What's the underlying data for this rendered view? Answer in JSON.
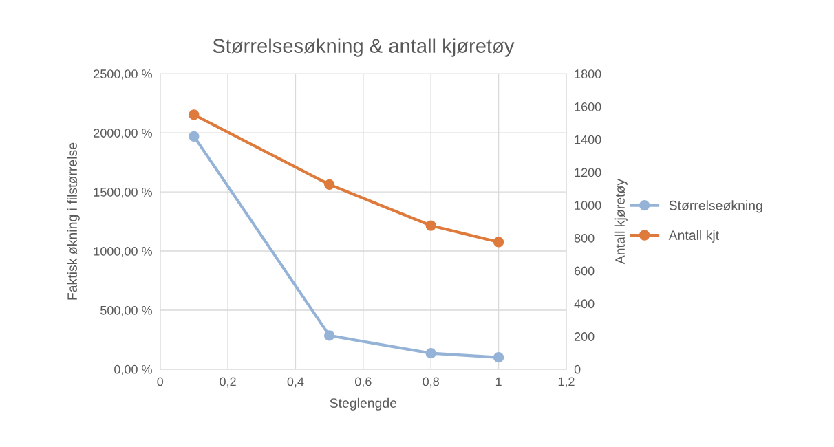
{
  "chart_data": {
    "type": "line",
    "title": "Størrelsesøkning & antall kjøretøy",
    "xlabel": "Steglengde",
    "ylabel": "Faktisk økning i filstørrelse",
    "y2label": "Antall kjøretøy",
    "x": [
      0.1,
      0.5,
      0.8,
      1
    ],
    "series": [
      {
        "name": "Størrelseøkning",
        "color": "#95b3d7",
        "values": [
          1970,
          285,
          135,
          100
        ]
      },
      {
        "name": "Antall kjt",
        "color": "#dd7a3c",
        "values": [
          1550,
          1125,
          875,
          775
        ],
        "axis": "y2"
      }
    ],
    "xlim": [
      0,
      1.2
    ],
    "xticks": [
      0,
      {
        "value": 0.2,
        "label": "0,2"
      },
      {
        "value": 0.4,
        "label": "0,4"
      },
      {
        "value": 0.6,
        "label": "0,6"
      },
      {
        "value": 0.8,
        "label": "0,8"
      },
      1,
      {
        "value": 1.2,
        "label": "1,2"
      }
    ],
    "ylim": [
      0,
      2500
    ],
    "yticks": [
      {
        "value": 0,
        "label": "0,00 %"
      },
      {
        "value": 500,
        "label": "500,00 %"
      },
      {
        "value": 1000,
        "label": "1000,00 %"
      },
      {
        "value": 1500,
        "label": "1500,00 %"
      },
      {
        "value": 2000,
        "label": "2000,00 %"
      },
      {
        "value": 2500,
        "label": "2500,00 %"
      }
    ],
    "y2lim": [
      0,
      1800
    ],
    "y2ticks": [
      0,
      200,
      400,
      600,
      800,
      1000,
      1200,
      1400,
      1600,
      1800
    ],
    "grid": true,
    "legend": "right",
    "marker": "circle",
    "line_style": "solid"
  }
}
